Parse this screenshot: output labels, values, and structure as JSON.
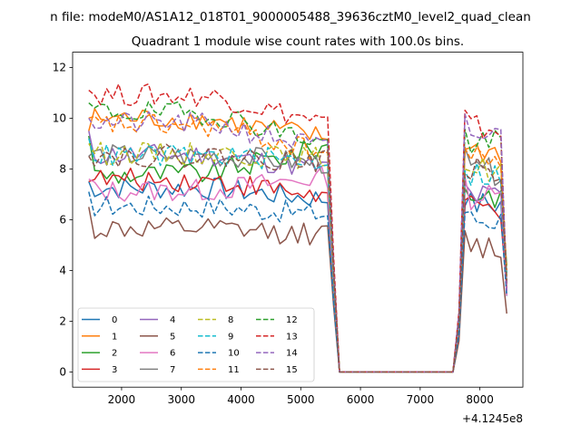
{
  "chart_data": {
    "type": "line",
    "suptitle": "n file: modeM0/AS1A12_018T01_9000005488_39636cztM0_level2_quad_clean",
    "title": "Quadrant 1 module wise count rates with 100.0s bins.",
    "xlabel": "",
    "ylabel": "",
    "x_offset_label": "+4.1245e8",
    "xlim": [
      1180,
      8720
    ],
    "ylim": [
      -0.6,
      12.6
    ],
    "xticks": [
      2000,
      3000,
      4000,
      5000,
      6000,
      7000,
      8000
    ],
    "yticks": [
      0,
      2,
      4,
      6,
      8,
      10,
      12
    ],
    "grid": false,
    "legend_position": "lower-left",
    "legend_columns": 4,
    "x_start": 1450,
    "x_step": 100,
    "active_end": 5450,
    "drop_end": 5650,
    "gap_start": 7550,
    "resume_start": 7650,
    "x_end": 8450,
    "series": [
      {
        "name": "0",
        "color": "#1f77b4",
        "dashed": false,
        "level1": 7.2,
        "level2": 6.8,
        "first": 7.5,
        "end1": 6.6,
        "end2": 3.0
      },
      {
        "name": "1",
        "color": "#ff7f0e",
        "dashed": false,
        "level1": 9.9,
        "level2": 9.2,
        "first": 9.5,
        "end1": 8.7,
        "end2": 3.3
      },
      {
        "name": "2",
        "color": "#2ca02c",
        "dashed": false,
        "level1": 7.9,
        "level2": 8.9,
        "first": 9.3,
        "end1": 7.0,
        "end2": 4.2
      },
      {
        "name": "3",
        "color": "#d62728",
        "dashed": false,
        "level1": 7.5,
        "level2": 6.9,
        "first": 7.5,
        "end1": 6.4,
        "end2": 3.3
      },
      {
        "name": "4",
        "color": "#9467bd",
        "dashed": false,
        "level1": 8.5,
        "level2": 8.0,
        "first": 9.5,
        "end1": 6.9,
        "end2": 3.2
      },
      {
        "name": "5",
        "color": "#8c564b",
        "dashed": false,
        "level1": 5.6,
        "level2": 5.4,
        "first": 6.5,
        "end1": 4.9,
        "end2": 2.3
      },
      {
        "name": "6",
        "color": "#e377c2",
        "dashed": false,
        "level1": 7.2,
        "level2": 7.7,
        "first": 7.6,
        "end1": 6.9,
        "end2": 3.0
      },
      {
        "name": "7",
        "color": "#7f7f7f",
        "dashed": false,
        "level1": 8.5,
        "level2": 8.2,
        "first": 8.5,
        "end1": 7.9,
        "end2": 3.5
      },
      {
        "name": "8",
        "color": "#bcbd22",
        "dashed": true,
        "level1": 8.6,
        "level2": 8.4,
        "first": 9.0,
        "end1": 8.0,
        "end2": 3.8
      },
      {
        "name": "9",
        "color": "#17becf",
        "dashed": true,
        "level1": 8.5,
        "level2": 8.3,
        "first": 9.2,
        "end1": 7.8,
        "end2": 3.9
      },
      {
        "name": "10",
        "color": "#1f77b4",
        "dashed": true,
        "level1": 6.5,
        "level2": 6.2,
        "first": 7.1,
        "end1": 6.0,
        "end2": 3.0
      },
      {
        "name": "11",
        "color": "#ff7f0e",
        "dashed": true,
        "level1": 9.6,
        "level2": 8.6,
        "first": 10.0,
        "end1": 8.4,
        "end2": 4.0
      },
      {
        "name": "12",
        "color": "#2ca02c",
        "dashed": true,
        "level1": 10.1,
        "level2": 9.0,
        "first": 10.6,
        "end1": 9.0,
        "end2": 3.5
      },
      {
        "name": "13",
        "color": "#d62728",
        "dashed": true,
        "level1": 10.8,
        "level2": 9.8,
        "first": 11.1,
        "end1": 9.6,
        "end2": 3.4
      },
      {
        "name": "14",
        "color": "#9467bd",
        "dashed": true,
        "level1": 9.7,
        "level2": 8.8,
        "first": 10.0,
        "end1": 9.3,
        "end2": 3.2
      },
      {
        "name": "15",
        "color": "#8c564b",
        "dashed": true,
        "level1": 8.5,
        "level2": 8.3,
        "first": 8.5,
        "end1": 7.9,
        "end2": 3.6
      }
    ]
  }
}
